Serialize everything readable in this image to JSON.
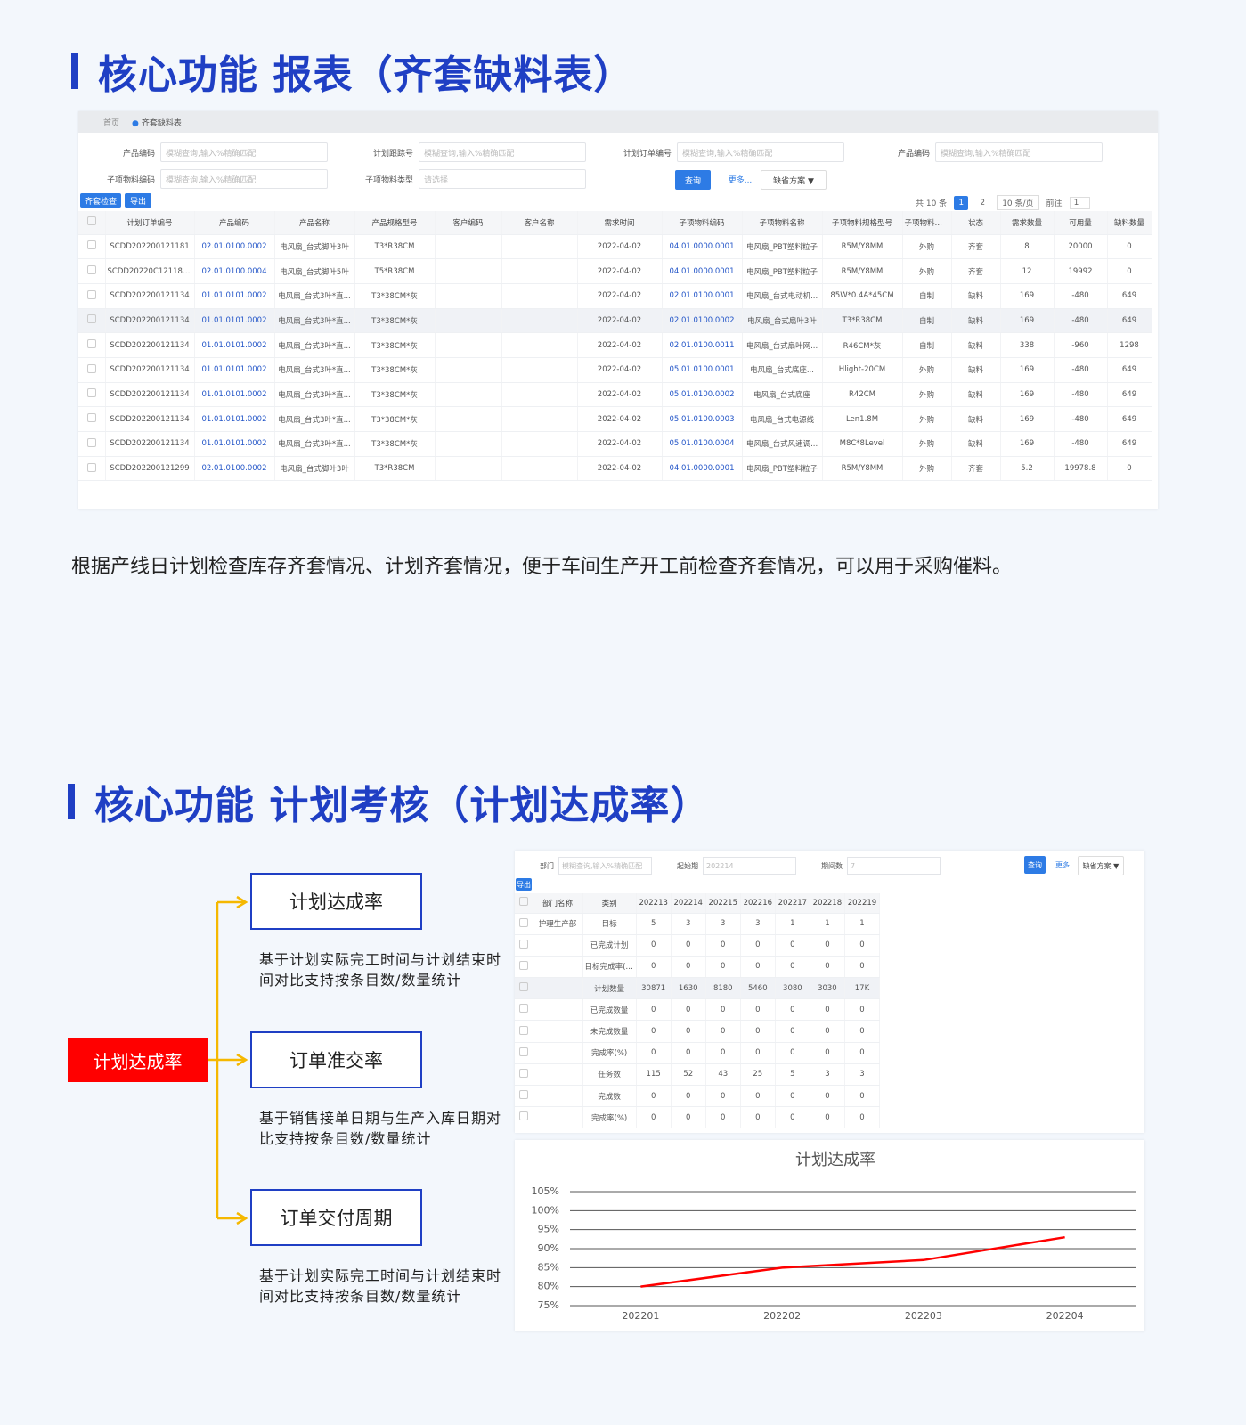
{
  "section1": {
    "title": "核心功能  报表（齐套缺料表）",
    "tabs": [
      "首页",
      "齐套缺料表"
    ],
    "filters": [
      {
        "label": "产品编码",
        "placeholder": "模糊查询,输入%精确匹配"
      },
      {
        "label": "计划跟踪号",
        "placeholder": "模糊查询,输入%精确匹配"
      },
      {
        "label": "计划订单编号",
        "placeholder": "模糊查询,输入%精确匹配"
      },
      {
        "label": "产品编码",
        "placeholder": "模糊查询,输入%精确匹配"
      },
      {
        "label": "子项物料编码",
        "placeholder": "模糊查询,输入%精确匹配"
      },
      {
        "label": "子项物料类型",
        "placeholder": "请选择"
      }
    ],
    "buttons": {
      "query": "查询",
      "more": "更多...",
      "scheme": "缺省方案 ▼",
      "check": "齐套检查",
      "export": "导出"
    },
    "pagination": {
      "total": "共 10 条",
      "pages": [
        "1",
        "2"
      ],
      "size": "10 条/页",
      "goto": "前往",
      "goto_page": "1"
    },
    "table": {
      "columns": [
        "计划订单编号",
        "产品编码",
        "产品名称",
        "产品规格型号",
        "客户编码",
        "客户名称",
        "需求时间",
        "子项物料编码",
        "子项物料名称",
        "子项物料规格型号",
        "子项物料类型",
        "状态",
        "需求数量",
        "可用量",
        "缺料数量"
      ],
      "rows": [
        [
          "SCDD202200121181",
          "02.01.0100.0002",
          "电风扇_台式脚叶3叶",
          "T3*R38CM",
          null,
          null,
          "2022-04-02",
          "04.01.0000.0001",
          "电风扇_PBT塑料粒子",
          "R5M/Y8MM",
          "外购",
          "齐套",
          "8",
          "20000",
          "0"
        ],
        [
          "SCDD20220C121181...",
          "02.01.0100.0004",
          "电风扇_台式脚叶5叶",
          "T5*R38CM",
          null,
          null,
          "2022-04-02",
          "04.01.0000.0001",
          "电风扇_PBT塑料粒子",
          "R5M/Y8MM",
          "外购",
          "齐套",
          "12",
          "19992",
          "0"
        ],
        [
          "SCDD202200121134",
          "01.01.0101.0002",
          "电风扇_台式3叶*直...",
          "T3*38CM*灰",
          null,
          null,
          "2022-04-02",
          "02.01.0100.0001",
          "电风扇_台式电动机...",
          "85W*0.4A*45CM",
          "自制",
          "缺料",
          "169",
          "-480",
          "649"
        ],
        [
          "SCDD202200121134",
          "01.01.0101.0002",
          "电风扇_台式3叶*直...",
          "T3*38CM*灰",
          null,
          null,
          "2022-04-02",
          "02.01.0100.0002",
          "电风扇_台式扇叶3叶",
          "T3*R38CM",
          "自制",
          "缺料",
          "169",
          "-480",
          "649"
        ],
        [
          "SCDD202200121134",
          "01.01.0101.0002",
          "电风扇_台式3叶*直...",
          "T3*38CM*灰",
          null,
          null,
          "2022-04-02",
          "02.01.0100.0011",
          "电风扇_台式扇叶网...",
          "R46CM*灰",
          "自制",
          "缺料",
          "338",
          "-960",
          "1298"
        ],
        [
          "SCDD202200121134",
          "01.01.0101.0002",
          "电风扇_台式3叶*直...",
          "T3*38CM*灰",
          null,
          null,
          "2022-04-02",
          "05.01.0100.0001",
          "电风扇_台式底座...",
          "Hlight-20CM",
          "外购",
          "缺料",
          "169",
          "-480",
          "649"
        ],
        [
          "SCDD202200121134",
          "01.01.0101.0002",
          "电风扇_台式3叶*直...",
          "T3*38CM*灰",
          null,
          null,
          "2022-04-02",
          "05.01.0100.0002",
          "电风扇_台式底座",
          "R42CM",
          "外购",
          "缺料",
          "169",
          "-480",
          "649"
        ],
        [
          "SCDD202200121134",
          "01.01.0101.0002",
          "电风扇_台式3叶*直...",
          "T3*38CM*灰",
          null,
          null,
          "2022-04-02",
          "05.01.0100.0003",
          "电风扇_台式电源线",
          "Len1.8M",
          "外购",
          "缺料",
          "169",
          "-480",
          "649"
        ],
        [
          "SCDD202200121134",
          "01.01.0101.0002",
          "电风扇_台式3叶*直...",
          "T3*38CM*灰",
          null,
          null,
          "2022-04-02",
          "05.01.0100.0004",
          "电风扇_台式风速调...",
          "M8C*8Level",
          "外购",
          "缺料",
          "169",
          "-480",
          "649"
        ],
        [
          "SCDD202200121299",
          "02.01.0100.0002",
          "电风扇_台式脚叶3叶",
          "T3*R38CM",
          null,
          null,
          "2022-04-02",
          "04.01.0000.0001",
          "电风扇_PBT塑料粒子",
          "R5M/Y8MM",
          "外购",
          "齐套",
          "5.2",
          "19978.8",
          "0"
        ]
      ]
    },
    "description": "根据产线日计划检查库存齐套情况、计划齐套情况，便于车间生产开工前检查齐套情况，可以用于采购催料。"
  },
  "section2": {
    "title": "核心功能  计划考核（计划达成率）",
    "diagram": {
      "root": "计划达成率",
      "nodes": [
        {
          "label": "计划达成率",
          "note": "基于计划实际完工时间与计划结束时间对比支持按条目数/数量统计"
        },
        {
          "label": "订单准交率",
          "note": "基于销售接单日期与生产入库日期对比支持按条目数/数量统计"
        },
        {
          "label": "订单交付周期",
          "note": "基于计划实际完工时间与计划结束时间对比支持按条目数/数量统计"
        }
      ]
    },
    "screenshot": {
      "filters": [
        {
          "label": "部门",
          "placeholder": "模糊查询,输入%精确匹配"
        },
        {
          "label": "起始期",
          "placeholder": "202214"
        },
        {
          "label": "期间数",
          "placeholder": "7"
        }
      ],
      "buttons": {
        "query": "查询",
        "more": "更多",
        "scheme": "缺省方案 ▼",
        "export": "导出"
      },
      "table": {
        "columns": [
          "部门名称",
          "类别",
          "202213",
          "202214",
          "202215",
          "202216",
          "202217",
          "202218",
          "202219"
        ],
        "rows": [
          [
            "护理生产部",
            "目标",
            "5",
            "3",
            "3",
            "3",
            "1",
            "1",
            "1"
          ],
          [
            null,
            "已完成计划",
            "0",
            "0",
            "0",
            "0",
            "0",
            "0",
            "0"
          ],
          [
            null,
            "目标完成率(%)",
            "0",
            "0",
            "0",
            "0",
            "0",
            "0",
            "0"
          ],
          [
            null,
            "计划数量",
            "30871",
            "1630",
            "8180",
            "5460",
            "3080",
            "3030",
            "17K"
          ],
          [
            null,
            "已完成数量",
            "0",
            "0",
            "0",
            "0",
            "0",
            "0",
            "0"
          ],
          [
            null,
            "未完成数量",
            "0",
            "0",
            "0",
            "0",
            "0",
            "0",
            "0"
          ],
          [
            null,
            "完成率(%)",
            "0",
            "0",
            "0",
            "0",
            "0",
            "0",
            "0"
          ],
          [
            null,
            "任务数",
            "115",
            "52",
            "43",
            "25",
            "5",
            "3",
            "3"
          ],
          [
            null,
            "完成数",
            "0",
            "0",
            "0",
            "0",
            "0",
            "0",
            "0"
          ],
          [
            null,
            "完成率(%)",
            "0",
            "0",
            "0",
            "0",
            "0",
            "0",
            "0"
          ]
        ]
      }
    }
  },
  "chart_data": {
    "type": "line",
    "title": "计划达成率",
    "categories": [
      "202201",
      "202202",
      "202203",
      "202204"
    ],
    "series": [
      {
        "name": "计划达成率",
        "color": "#ff0000",
        "values": [
          80,
          85,
          87,
          93
        ]
      }
    ],
    "ylim": [
      75,
      105
    ],
    "yticks": [
      {
        "value": 75,
        "label": "75%"
      },
      {
        "value": 80,
        "label": "80%"
      },
      {
        "value": 85,
        "label": "85%"
      },
      {
        "value": 90,
        "label": "90%"
      },
      {
        "value": 95,
        "label": "95%"
      },
      {
        "value": 100,
        "label": "100%"
      },
      {
        "value": 105,
        "label": "105%"
      }
    ],
    "grid": true
  }
}
